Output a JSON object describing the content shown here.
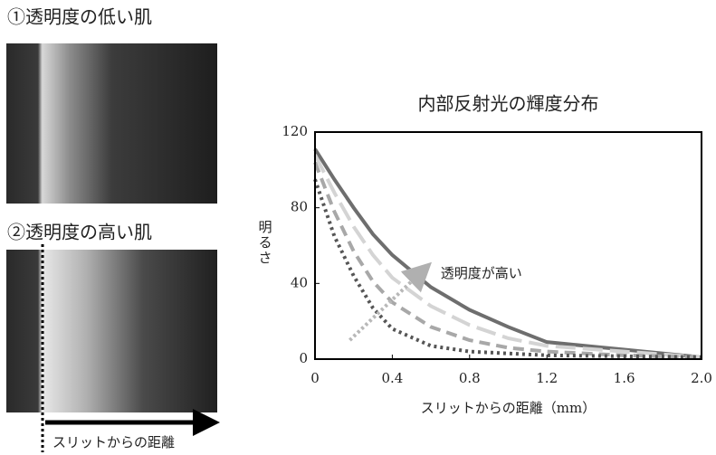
{
  "figure": {
    "panel_low": "①透明度の低い肌",
    "panel_high": "②透明度の高い肌",
    "slit_label": "スリットからの距離"
  },
  "chart_data": {
    "type": "line",
    "title": "内部反射光の輝度分布",
    "x_label": "スリットからの距離（mm）",
    "y_label": "明るさ",
    "annotation": "透明度が高い",
    "x": [
      0,
      0.1,
      0.2,
      0.3,
      0.4,
      0.6,
      0.8,
      1.0,
      1.2,
      1.6,
      2.0
    ],
    "series": [
      {
        "color": "#6e6e6e",
        "style": "solid",
        "values": [
          111,
          95,
          80,
          66,
          55,
          38,
          26,
          17,
          9,
          5,
          1
        ]
      },
      {
        "color": "#d4d4d4",
        "style": "long-dash",
        "values": [
          108,
          88,
          70,
          55,
          43,
          28,
          18,
          11,
          7,
          4,
          1
        ]
      },
      {
        "color": "#a8a8a8",
        "style": "dash",
        "values": [
          104,
          78,
          57,
          41,
          30,
          17,
          10,
          6,
          4,
          2,
          1
        ]
      },
      {
        "color": "#555555",
        "style": "dot",
        "values": [
          95,
          65,
          44,
          27,
          16,
          7,
          4,
          3,
          2,
          1.5,
          1
        ]
      }
    ],
    "xlim": [
      0,
      2
    ],
    "xticks": [
      0,
      0.4,
      0.8,
      1.2,
      1.6,
      {
        "value": 2,
        "label": "2.0"
      }
    ],
    "ylim": [
      0,
      120
    ],
    "yticks": [
      0,
      40,
      80,
      120
    ]
  }
}
